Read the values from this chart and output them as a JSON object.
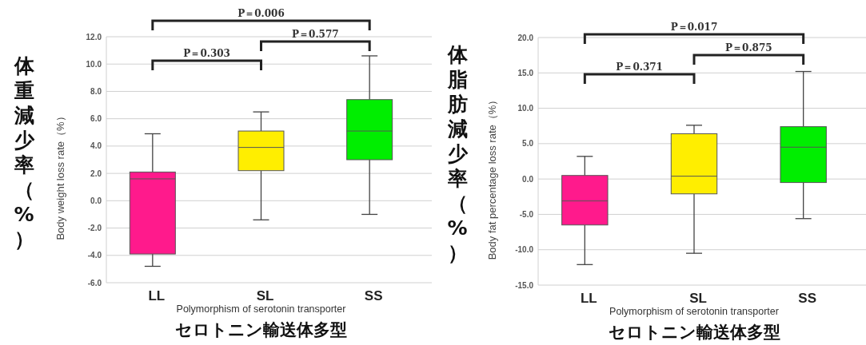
{
  "chart_data": [
    {
      "type": "box",
      "categories": [
        "LL",
        "SL",
        "SS"
      ],
      "colors": [
        "#ff1a8c",
        "#ffee00",
        "#00ee00"
      ],
      "boxes": [
        {
          "low": -4.8,
          "q1": -3.9,
          "median": 1.6,
          "q3": 2.1,
          "high": 4.9
        },
        {
          "low": -1.4,
          "q1": 2.2,
          "median": 3.9,
          "q3": 5.1,
          "high": 6.5
        },
        {
          "low": -1.0,
          "q1": 3.0,
          "median": 5.1,
          "q3": 7.4,
          "high": 10.6
        }
      ],
      "ylim": [
        -6,
        12
      ],
      "yticks": [
        {
          "value": -6,
          "label": "-6.0"
        },
        {
          "value": -4,
          "label": "-4.0"
        },
        {
          "value": -2,
          "label": "-2.0"
        },
        {
          "value": 0,
          "label": "0.0"
        },
        {
          "value": 2,
          "label": "2.0"
        },
        {
          "value": 4,
          "label": "4.0"
        },
        {
          "value": 6,
          "label": "6.0"
        },
        {
          "value": 8,
          "label": "8.0"
        },
        {
          "value": 10,
          "label": "10.0"
        },
        {
          "value": 12,
          "label": "12.0"
        }
      ],
      "grid": "y",
      "ylabel": "Body weight loss rate（%）",
      "xlabel": "Polymorphism of serotonin transporter\nセロトニン輸送体多型",
      "annotations": [
        "P＝0.303",
        "P＝0.577",
        "P＝0.006",
        "体重減少率（%）"
      ]
    },
    {
      "type": "box",
      "categories": [
        "LL",
        "SL",
        "SS"
      ],
      "colors": [
        "#ff1a8c",
        "#ffee00",
        "#00ee00"
      ],
      "boxes": [
        {
          "low": -12.1,
          "q1": -6.5,
          "median": -3.1,
          "q3": 0.5,
          "high": 3.2
        },
        {
          "low": -10.5,
          "q1": -2.1,
          "median": 0.4,
          "q3": 6.4,
          "high": 7.6
        },
        {
          "low": -5.6,
          "q1": -0.5,
          "median": 4.5,
          "q3": 7.4,
          "high": 15.2
        }
      ],
      "ylim": [
        -15,
        20
      ],
      "yticks": [
        {
          "value": -15,
          "label": "-15.0"
        },
        {
          "value": -10,
          "label": "-10.0"
        },
        {
          "value": -5,
          "label": "-5.0"
        },
        {
          "value": 0,
          "label": "0.0"
        },
        {
          "value": 5,
          "label": "5.0"
        },
        {
          "value": 10,
          "label": "10.0"
        },
        {
          "value": 15,
          "label": "15.0"
        },
        {
          "value": 20,
          "label": "20.0"
        }
      ],
      "grid": "y",
      "ylabel": "Body fat percentage loss rate（%）",
      "xlabel": "Polymorphism of serotonin transporter\nセロトニン輸送体多型",
      "annotations": [
        "P＝0.371",
        "P＝0.875",
        "P＝0.017",
        "体脂肪減少率（%）"
      ]
    }
  ]
}
